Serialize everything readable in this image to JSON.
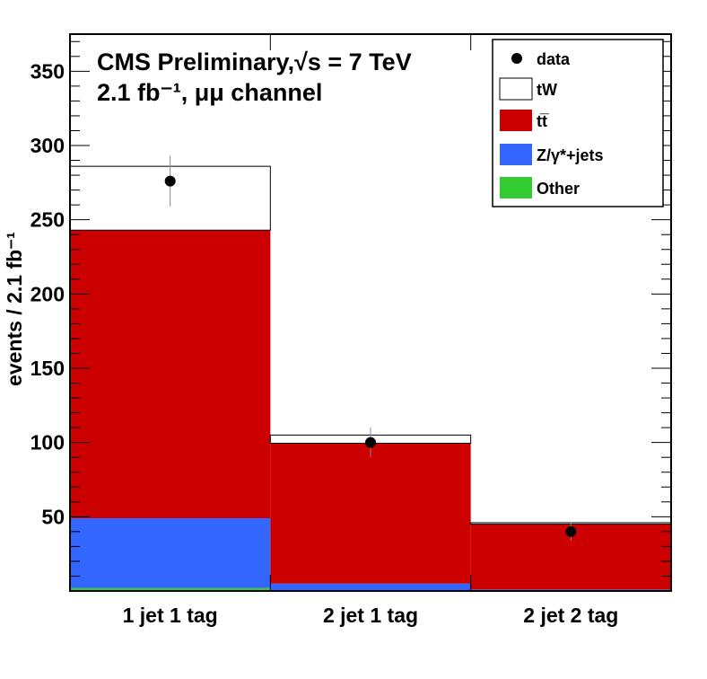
{
  "chart_data": {
    "type": "bar",
    "stacked": true,
    "categories": [
      "1 jet 1 tag",
      "2 jet 1 tag",
      "2 jet 2 tag"
    ],
    "ylabel": "events / 2.1 fb⁻¹",
    "ylim": [
      0,
      375
    ],
    "yticks": [
      50,
      100,
      150,
      200,
      250,
      300,
      350
    ],
    "title_line1": "CMS Preliminary,√s = 7 TeV",
    "title_line2": "2.1 fb⁻¹, μμ channel",
    "legend_position": "top-right",
    "series": [
      {
        "name": "Other",
        "color": "#33cc33",
        "values": [
          2,
          0.5,
          0.3
        ]
      },
      {
        "name": "Z/γ*+jets",
        "color": "#3366ff",
        "values": [
          47,
          4.5,
          0.7
        ]
      },
      {
        "name": "tt̅",
        "color": "#cc0000",
        "values": [
          194,
          94.5,
          44
        ]
      },
      {
        "name": "tW",
        "color": "#ffffff",
        "values": [
          43,
          5.5,
          1
        ]
      }
    ],
    "data": {
      "name": "data",
      "values": [
        276,
        100,
        40
      ],
      "errors": [
        17,
        10,
        6.3
      ]
    }
  }
}
